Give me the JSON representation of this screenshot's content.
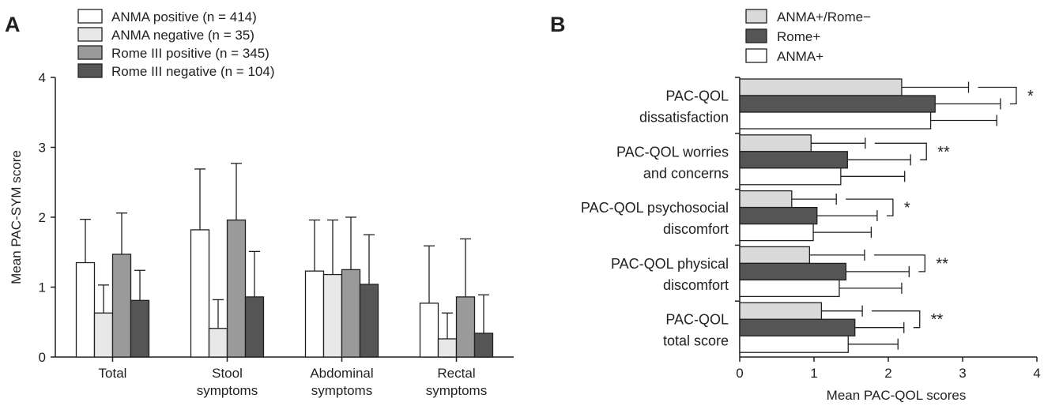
{
  "panels": {
    "a": "A",
    "b": "B"
  },
  "chart_data": [
    {
      "type": "bar",
      "panel": "A",
      "orientation": "vertical",
      "ylabel": "Mean PAC-SYM score",
      "xlabel": "",
      "ylim": [
        0,
        4
      ],
      "yticks": [
        "0",
        "1",
        "2",
        "3",
        "4"
      ],
      "categories": [
        [
          "Total"
        ],
        [
          "Stool",
          "symptoms"
        ],
        [
          "Abdominal",
          "symptoms"
        ],
        [
          "Rectal",
          "symptoms"
        ]
      ],
      "legend_position": "top-left",
      "series": [
        {
          "name": "ANMA positive (n = 414)",
          "color": "#ffffff",
          "values": [
            1.35,
            1.82,
            1.23,
            0.77
          ],
          "err": [
            0.62,
            0.87,
            0.73,
            0.82
          ]
        },
        {
          "name": "ANMA negative (n = 35)",
          "color": "#e8e8e8",
          "values": [
            0.63,
            0.41,
            1.18,
            0.26
          ],
          "err": [
            0.4,
            0.41,
            0.78,
            0.37
          ]
        },
        {
          "name": "Rome III positive (n = 345)",
          "color": "#9a9a9a",
          "values": [
            1.47,
            1.96,
            1.25,
            0.86
          ],
          "err": [
            0.59,
            0.81,
            0.75,
            0.83
          ]
        },
        {
          "name": "Rome III negative (n = 104)",
          "color": "#555555",
          "values": [
            0.81,
            0.86,
            1.04,
            0.34
          ],
          "err": [
            0.43,
            0.65,
            0.71,
            0.55
          ]
        }
      ]
    },
    {
      "type": "bar",
      "panel": "B",
      "orientation": "horizontal",
      "xlabel": "Mean PAC-QOL scores",
      "ylabel": "",
      "xlim": [
        0,
        4
      ],
      "xticks": [
        "0",
        "1",
        "2",
        "3",
        "4"
      ],
      "categories": [
        [
          "PAC-QOL",
          "dissatisfaction"
        ],
        [
          "PAC-QOL worries",
          "and concerns"
        ],
        [
          "PAC-QOL psychosocial",
          "discomfort"
        ],
        [
          "PAC-QOL physical",
          "discomfort"
        ],
        [
          "PAC-QOL",
          "total score"
        ]
      ],
      "significance": [
        "*",
        "**",
        "*",
        "**",
        "**"
      ],
      "legend_position": "top-left",
      "series": [
        {
          "name": "ANMA+/Rome−",
          "color": "#d9d9d9",
          "values": [
            2.18,
            0.96,
            0.7,
            0.94,
            1.1
          ],
          "err": [
            0.9,
            0.73,
            0.6,
            0.74,
            0.55
          ]
        },
        {
          "name": "Rome+",
          "color": "#555555",
          "values": [
            2.63,
            1.45,
            1.04,
            1.43,
            1.55
          ],
          "err": [
            0.88,
            0.85,
            0.81,
            0.85,
            0.66
          ]
        },
        {
          "name": "ANMA+",
          "color": "#ffffff",
          "values": [
            2.57,
            1.36,
            0.99,
            1.34,
            1.46
          ],
          "err": [
            0.89,
            0.86,
            0.78,
            0.84,
            0.67
          ]
        }
      ]
    }
  ]
}
